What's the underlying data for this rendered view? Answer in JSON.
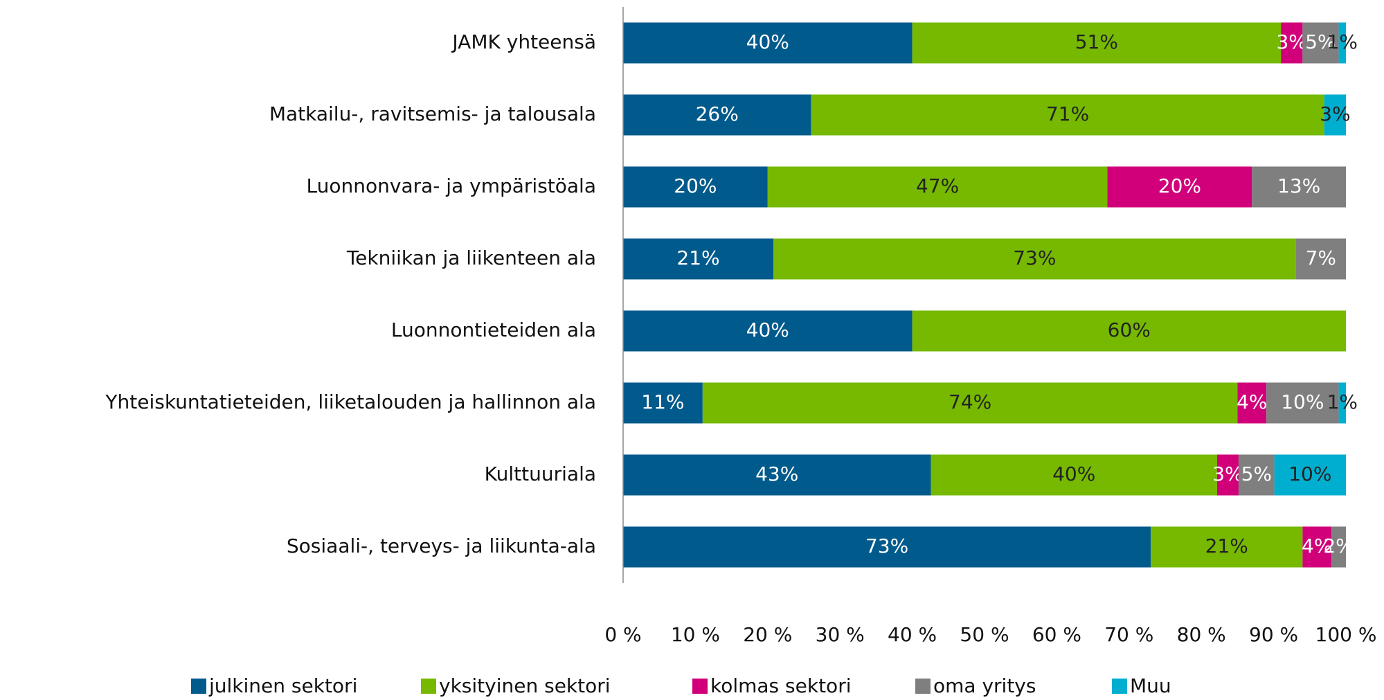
{
  "chart_data": {
    "type": "bar",
    "orientation": "horizontal",
    "stacked": "percent",
    "categories": [
      "JAMK yhteensä",
      "Matkailu-, ravitsemis- ja talousala",
      "Luonnonvara- ja ympäristöala",
      "Tekniikan ja liikenteen ala",
      "Luonnontieteiden ala",
      "Yhteiskuntatieteiden, liiketalouden ja hallinnon ala",
      "Kulttuuriala",
      "Sosiaali-, terveys- ja liikunta-ala"
    ],
    "series": [
      {
        "name": "julkinen sektori",
        "color": "#005a8c",
        "values": [
          40,
          26,
          20,
          21,
          40,
          11,
          43,
          73
        ],
        "value_labels": [
          "40%",
          "26%",
          "20%",
          "21%",
          "40%",
          "11%",
          "43%",
          "73%"
        ]
      },
      {
        "name": "yksityinen sektori",
        "color": "#76b900",
        "values": [
          51,
          71,
          47,
          73,
          60,
          74,
          40,
          21
        ],
        "value_labels": [
          "51%",
          "71%",
          "47%",
          "73%",
          "60%",
          "74%",
          "40%",
          "21%"
        ]
      },
      {
        "name": "kolmas sektori",
        "color": "#d1007a",
        "values": [
          3,
          null,
          20,
          null,
          null,
          4,
          3,
          4
        ],
        "value_labels": [
          "3%",
          null,
          "20%",
          null,
          null,
          "4%",
          "3%",
          "4%"
        ]
      },
      {
        "name": "oma yritys",
        "color": "#7f7f80",
        "values": [
          5,
          null,
          13,
          7,
          null,
          10,
          5,
          2
        ],
        "value_labels": [
          "5%",
          null,
          "13%",
          "7%",
          null,
          "10%",
          "5%",
          "2%"
        ]
      },
      {
        "name": "Muu",
        "color": "#00aecf",
        "values": [
          1,
          3,
          null,
          null,
          null,
          1,
          10,
          null
        ],
        "value_labels": [
          "1%",
          "3%",
          null,
          null,
          null,
          "1%",
          "10%",
          null
        ]
      }
    ],
    "xlim": [
      0,
      100
    ],
    "xticks": [
      {
        "value": 0,
        "label": "0 %"
      },
      {
        "value": 10,
        "label": "10 %"
      },
      {
        "value": 20,
        "label": "20 %"
      },
      {
        "value": 30,
        "label": "30 %"
      },
      {
        "value": 40,
        "label": "40 %"
      },
      {
        "value": 50,
        "label": "50 %"
      },
      {
        "value": 60,
        "label": "60 %"
      },
      {
        "value": 70,
        "label": "70 %"
      },
      {
        "value": 80,
        "label": "80 %"
      },
      {
        "value": 90,
        "label": "90 %"
      },
      {
        "value": 100,
        "label": "100 %"
      }
    ],
    "legend": "bottom"
  }
}
